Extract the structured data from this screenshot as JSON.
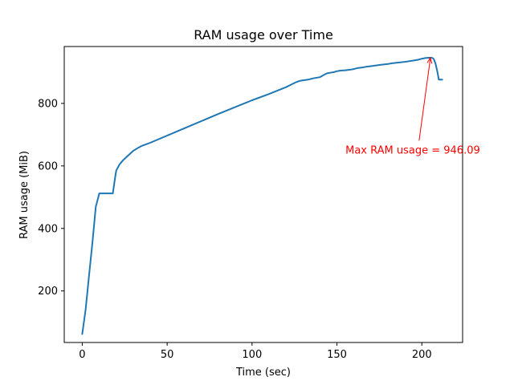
{
  "chart_data": {
    "type": "line",
    "title": "RAM usage over Time",
    "xlabel": "Time (sec)",
    "ylabel": "RAM usage (MiB)",
    "xlim": [
      -10.6,
      224
    ],
    "ylim": [
      35,
      982
    ],
    "xticks": [
      0,
      50,
      100,
      150,
      200
    ],
    "yticks": [
      200,
      400,
      600,
      800
    ],
    "grid": false,
    "series": [
      {
        "color": "#1f77b4",
        "x": [
          0,
          2,
          4,
          6,
          8,
          9,
          10,
          11,
          14,
          18,
          19,
          20,
          22,
          24,
          26,
          28,
          30,
          33,
          35,
          38,
          40,
          60,
          80,
          100,
          110,
          120,
          123,
          126,
          128,
          130,
          133,
          136,
          140,
          142,
          144,
          146,
          148,
          150,
          152,
          155,
          158,
          160,
          162,
          165,
          167,
          170,
          175,
          180,
          182,
          185,
          190,
          195,
          198,
          200,
          202,
          204,
          206,
          207,
          208,
          209,
          210,
          212
        ],
        "y": [
          62,
          140,
          250,
          355,
          470,
          490,
          512,
          512,
          512,
          512,
          550,
          585,
          605,
          618,
          628,
          638,
          648,
          658,
          664,
          670,
          674,
          720,
          766,
          810,
          830,
          852,
          860,
          868,
          872,
          874,
          876,
          880,
          884,
          890,
          896,
          898,
          900,
          903,
          905,
          906,
          908,
          910,
          913,
          915,
          917,
          919,
          923,
          926,
          928,
          930,
          933,
          937,
          940,
          943,
          945,
          946,
          946,
          942,
          928,
          905,
          876,
          876
        ]
      }
    ],
    "annotation": {
      "text": "Max RAM usage = 946.09",
      "color": "#ff0000",
      "point": [
        205,
        946.09
      ],
      "text_at": [
        155,
        650
      ]
    }
  }
}
